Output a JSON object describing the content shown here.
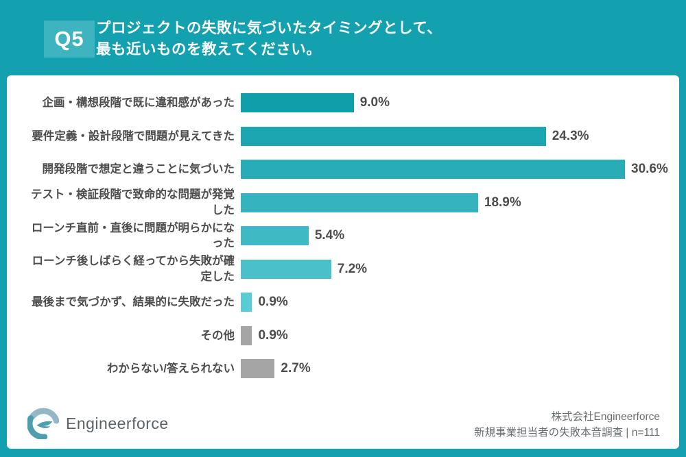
{
  "page": {
    "frame_color": "#14a1af",
    "card_color": "#ffffff"
  },
  "header": {
    "q_label": "Q5",
    "q_box_color": "#3db4bf",
    "title_line1": "プロジェクトの失敗に気づいたタイミングとして、",
    "title_line2": "最も近いものを教えてください。"
  },
  "chart_data": {
    "type": "bar",
    "orientation": "horizontal",
    "unit": "%",
    "xlim": [
      0,
      32
    ],
    "grid": false,
    "legend": false,
    "categories": [
      "企画・構想段階で既に違和感があった",
      "要件定義・設計段階で問題が見えてきた",
      "開発段階で想定と違うことに気づいた",
      "テスト・検証段階で致命的な問題が発覚した",
      "ローンチ直前・直後に問題が明らかになった",
      "ローンチ後しばらく経ってから失敗が確定した",
      "最後まで気づかず、結果的に失敗だった",
      "その他",
      "わからない/答えられない"
    ],
    "values": [
      9.0,
      24.3,
      30.6,
      18.9,
      5.4,
      7.2,
      0.9,
      0.9,
      2.7
    ],
    "value_labels": [
      "9.0%",
      "24.3%",
      "30.6%",
      "18.9%",
      "5.4%",
      "7.2%",
      "0.9%",
      "0.9%",
      "2.7%"
    ],
    "bar_colors": [
      "#109eab",
      "#1ca6b2",
      "#27acb8",
      "#35b4c0",
      "#3fbac4",
      "#49c0ca",
      "#57ccd4",
      "#a5a5a5",
      "#a5a5a5"
    ]
  },
  "footer": {
    "logo_text": "Engineerforce",
    "logo_icon": "engineerforce-mark",
    "logo_colors": {
      "dark_teal": "#4d9fae",
      "light_blue": "#93b7c5"
    },
    "credit_line1": "株式会社Engineerforce",
    "credit_line2": "新規事業担当者の失敗本音調査 | n=111"
  }
}
